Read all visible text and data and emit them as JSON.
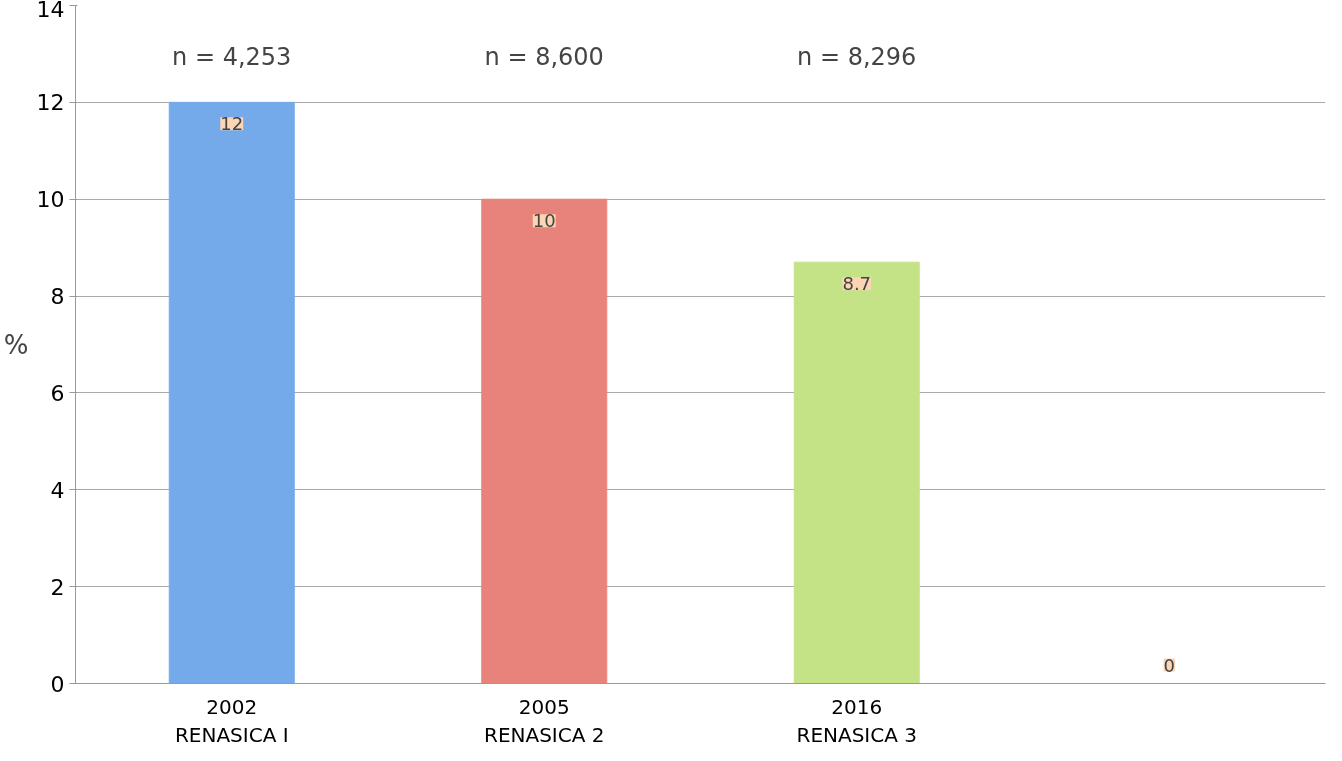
{
  "chart_data": {
    "type": "bar",
    "categories": [
      "2002\nRENASICA I",
      "2005\nRENASICA 2",
      "2016\nRENASICA 3",
      null
    ],
    "values": [
      12,
      10,
      8.7,
      0
    ],
    "colors": [
      "#74aaea",
      "#e8837c",
      "#c4e386",
      "#fcd5b5"
    ],
    "data_labels": true,
    "ylabel": "%",
    "ylim": [
      0,
      14
    ],
    "yticks": [
      0,
      2,
      4,
      6,
      8,
      10,
      12,
      14
    ],
    "grid": "y",
    "annotations": [
      "n = 4,253",
      "n = 8,600",
      "n = 8,296"
    ]
  }
}
